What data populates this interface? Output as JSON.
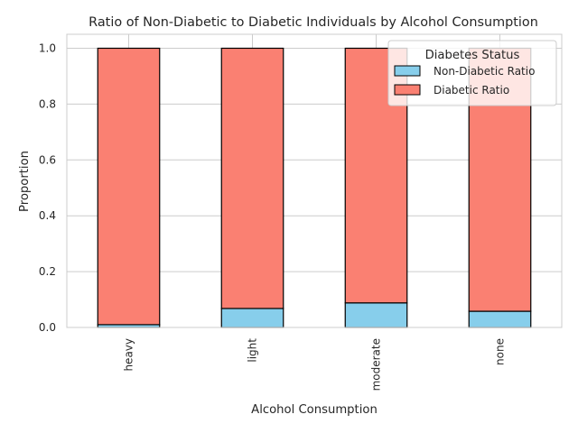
{
  "chart_data": {
    "type": "bar",
    "stacked": true,
    "title": "Ratio of Non-Diabetic to Diabetic Individuals by Alcohol Consumption",
    "xlabel": "Alcohol Consumption",
    "ylabel": "Proportion",
    "categories": [
      "heavy",
      "light",
      "moderate",
      "none"
    ],
    "series": [
      {
        "name": "Non-Diabetic Ratio",
        "values": [
          0.01,
          0.068,
          0.088,
          0.058
        ],
        "color": "#87ceeb"
      },
      {
        "name": "Diabetic Ratio",
        "values": [
          0.99,
          0.932,
          0.912,
          0.942
        ],
        "color": "#fa8072"
      }
    ],
    "ylim": [
      0,
      1.05
    ],
    "yticks": [
      0.0,
      0.2,
      0.4,
      0.6,
      0.8,
      1.0
    ],
    "ytick_labels": [
      "0.0",
      "0.2",
      "0.4",
      "0.6",
      "0.8",
      "1.0"
    ],
    "legend": {
      "title": "Diabetes Status",
      "position": "top-right"
    },
    "grid": true
  }
}
